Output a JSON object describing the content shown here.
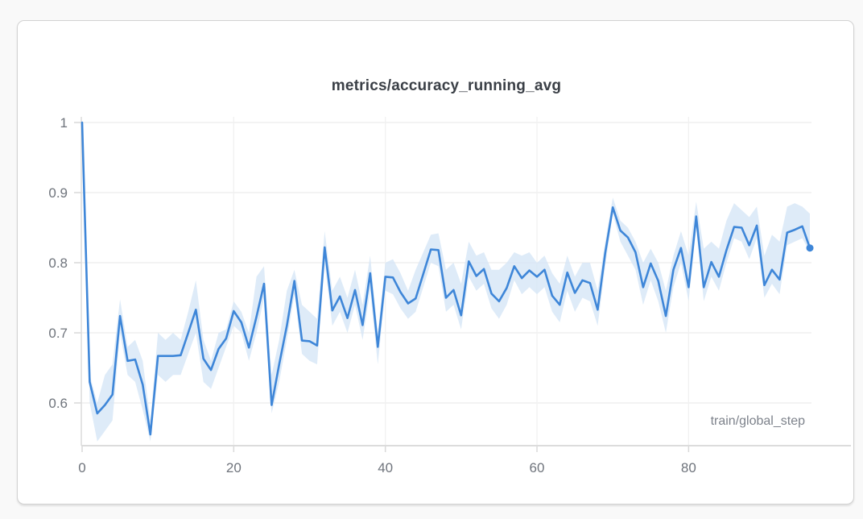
{
  "page": {
    "background": "#f9f9f9"
  },
  "card": {
    "background": "#ffffff",
    "border_color": "#d2d2d2"
  },
  "chart_data": {
    "type": "line",
    "title": "metrics/accuracy_running_avg",
    "xlabel": "train/global_step",
    "ylabel": "",
    "legend": "none",
    "grid": true,
    "xlim": [
      0,
      96.3
    ],
    "ylim": [
      0.539,
      1.0
    ],
    "x_ticks": [
      0,
      20,
      40,
      60,
      80
    ],
    "y_ticks": [
      "1",
      "0.9",
      "0.8",
      "0.7",
      "0.6"
    ],
    "y_tick_values": [
      1.0,
      0.9,
      0.8,
      0.7,
      0.6
    ],
    "x_start": 0,
    "x_step": 1,
    "last_point_marker": true,
    "last_point_value": 0.821,
    "colors": {
      "line": "#3e86d8",
      "band": "#d6e6f6",
      "gridline": "#ececec",
      "axis": "#dcdcdc",
      "tick": "#d9d9d9",
      "tick_label": "#6f747c",
      "title": "#3a3f46",
      "xlabel": "#7d828b"
    },
    "series": [
      {
        "name": "accuracy_running_avg",
        "values": [
          1.0,
          0.63,
          0.585,
          0.597,
          0.612,
          0.724,
          0.66,
          0.662,
          0.626,
          0.555,
          0.667,
          0.667,
          0.667,
          0.668,
          0.7,
          0.733,
          0.663,
          0.647,
          0.677,
          0.692,
          0.731,
          0.715,
          0.679,
          0.723,
          0.77,
          0.597,
          0.655,
          0.71,
          0.774,
          0.689,
          0.688,
          0.682,
          0.822,
          0.732,
          0.752,
          0.721,
          0.761,
          0.711,
          0.785,
          0.68,
          0.78,
          0.779,
          0.758,
          0.742,
          0.749,
          0.784,
          0.819,
          0.818,
          0.75,
          0.761,
          0.725,
          0.802,
          0.781,
          0.791,
          0.756,
          0.745,
          0.764,
          0.795,
          0.778,
          0.789,
          0.78,
          0.79,
          0.753,
          0.74,
          0.786,
          0.757,
          0.775,
          0.771,
          0.733,
          0.814,
          0.879,
          0.846,
          0.836,
          0.815,
          0.765,
          0.799,
          0.774,
          0.724,
          0.79,
          0.821,
          0.765,
          0.866,
          0.765,
          0.801,
          0.78,
          0.818,
          0.851,
          0.85,
          0.825,
          0.853,
          0.768,
          0.79,
          0.776,
          0.843,
          0.847,
          0.852,
          0.821
        ],
        "band_upper": [
          1.0,
          0.64,
          0.6,
          0.64,
          0.655,
          0.748,
          0.68,
          0.69,
          0.66,
          0.575,
          0.7,
          0.69,
          0.7,
          0.69,
          0.73,
          0.775,
          0.69,
          0.66,
          0.7,
          0.705,
          0.745,
          0.73,
          0.7,
          0.78,
          0.795,
          0.64,
          0.69,
          0.76,
          0.79,
          0.74,
          0.73,
          0.72,
          0.845,
          0.76,
          0.78,
          0.75,
          0.79,
          0.74,
          0.81,
          0.7,
          0.8,
          0.805,
          0.785,
          0.76,
          0.79,
          0.815,
          0.84,
          0.842,
          0.79,
          0.8,
          0.77,
          0.83,
          0.81,
          0.815,
          0.79,
          0.79,
          0.8,
          0.815,
          0.81,
          0.815,
          0.8,
          0.81,
          0.785,
          0.77,
          0.81,
          0.78,
          0.8,
          0.8,
          0.76,
          0.83,
          0.893,
          0.86,
          0.85,
          0.83,
          0.8,
          0.82,
          0.8,
          0.76,
          0.81,
          0.845,
          0.81,
          0.887,
          0.82,
          0.83,
          0.82,
          0.86,
          0.885,
          0.875,
          0.865,
          0.88,
          0.81,
          0.84,
          0.83,
          0.88,
          0.885,
          0.88,
          0.87
        ],
        "band_lower": [
          1.0,
          0.6,
          0.545,
          0.56,
          0.575,
          0.7,
          0.64,
          0.63,
          0.59,
          0.545,
          0.64,
          0.63,
          0.64,
          0.64,
          0.67,
          0.7,
          0.63,
          0.62,
          0.65,
          0.68,
          0.71,
          0.7,
          0.66,
          0.7,
          0.75,
          0.585,
          0.63,
          0.69,
          0.755,
          0.67,
          0.66,
          0.655,
          0.8,
          0.71,
          0.73,
          0.7,
          0.74,
          0.69,
          0.76,
          0.655,
          0.76,
          0.755,
          0.735,
          0.72,
          0.73,
          0.765,
          0.8,
          0.795,
          0.73,
          0.74,
          0.705,
          0.78,
          0.76,
          0.77,
          0.735,
          0.72,
          0.74,
          0.775,
          0.755,
          0.765,
          0.755,
          0.765,
          0.73,
          0.715,
          0.76,
          0.73,
          0.75,
          0.745,
          0.71,
          0.795,
          0.87,
          0.83,
          0.81,
          0.79,
          0.74,
          0.775,
          0.745,
          0.7,
          0.765,
          0.8,
          0.745,
          0.85,
          0.745,
          0.78,
          0.76,
          0.8,
          0.835,
          0.83,
          0.805,
          0.835,
          0.75,
          0.77,
          0.755,
          0.825,
          0.83,
          0.835,
          0.815
        ]
      }
    ]
  }
}
